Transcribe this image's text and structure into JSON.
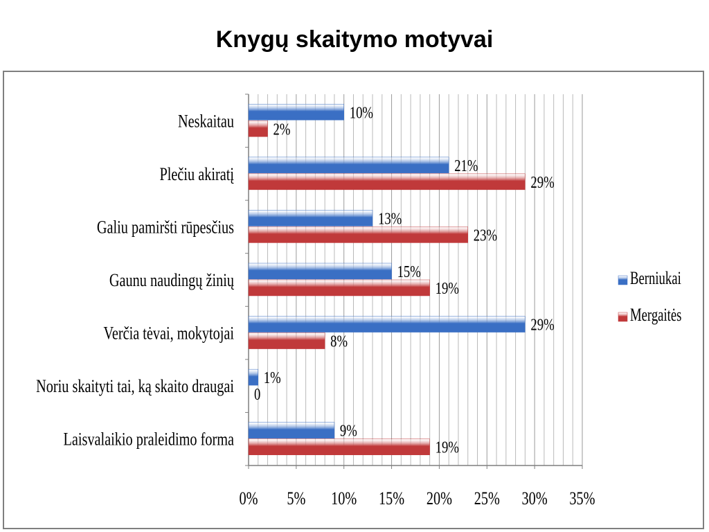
{
  "page": {
    "title": "Knygų skaitymo motyvai"
  },
  "chart_data": {
    "type": "bar",
    "orientation": "horizontal",
    "title": "",
    "categories": [
      "Neskaitau",
      "Plečiu akiratį",
      "Galiu pamiršti rūpesčius",
      "Gaunu naudingų žinių",
      "Verčia tėvai, mokytojai",
      "Noriu skaityti tai, ką skaito draugai",
      "Laisvalaikio praleidimo forma"
    ],
    "series": [
      {
        "name": "Berniukai",
        "color": "#3a6fc4",
        "values": [
          10,
          21,
          13,
          15,
          29,
          1,
          9
        ],
        "labels": [
          "10%",
          "21%",
          "13%",
          "15%",
          "29%",
          "1%",
          "9%"
        ]
      },
      {
        "name": "Mergaitės",
        "color": "#c0393a",
        "values": [
          2,
          29,
          23,
          19,
          8,
          0,
          19
        ],
        "labels": [
          "2%",
          "29%",
          "23%",
          "19%",
          "8%",
          "0",
          "19%"
        ]
      }
    ],
    "xlim": [
      0,
      35
    ],
    "xticks": [
      "0%",
      "5%",
      "10%",
      "15%",
      "20%",
      "25%",
      "30%",
      "35%"
    ],
    "grid": true,
    "legend_position": "right"
  }
}
